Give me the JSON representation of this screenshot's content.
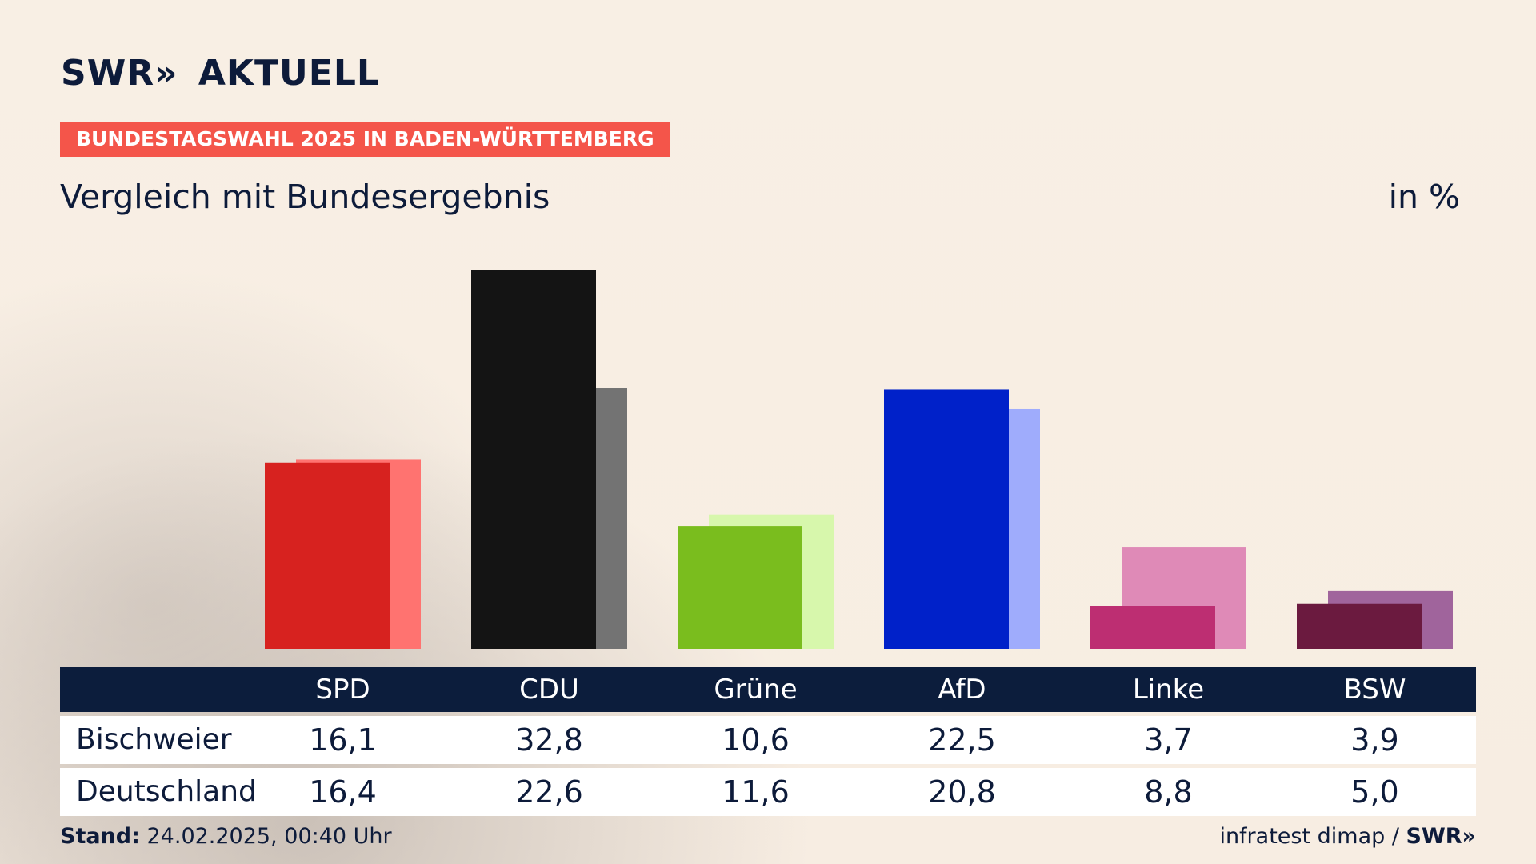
{
  "header": {
    "logo_text": "SWR",
    "logo_chevrons": "»",
    "logo_suffix": "AKTUELL",
    "kicker": "BUNDESTAGSWAHL 2025 IN BADEN-WÜRTTEMBERG",
    "subtitle": "Vergleich mit Bundesergebnis",
    "unit": "in %"
  },
  "table": {
    "rows": [
      {
        "label": "Bischweier"
      },
      {
        "label": "Deutschland"
      }
    ]
  },
  "footer": {
    "stand_label": "Stand:",
    "stand_value": " 24.02.2025, 00:40 Uhr",
    "source": "infratest dimap / ",
    "source_logo": "SWR»"
  },
  "chart_data": {
    "type": "bar",
    "categories": [
      "SPD",
      "CDU",
      "Grüne",
      "AfD",
      "Linke",
      "BSW"
    ],
    "series": [
      {
        "name": "Bischweier",
        "values": [
          16.1,
          32.8,
          10.6,
          22.5,
          3.7,
          3.9
        ]
      },
      {
        "name": "Deutschland",
        "values": [
          16.4,
          22.6,
          11.6,
          20.8,
          8.8,
          5.0
        ]
      }
    ],
    "value_labels": [
      [
        "16,1",
        "32,8",
        "10,6",
        "22,5",
        "3,7",
        "3,9"
      ],
      [
        "16,4",
        "22,6",
        "11,6",
        "20,8",
        "8,8",
        "5,0"
      ]
    ],
    "colors": {
      "primary": [
        "#d7221f",
        "#141414",
        "#7abd1e",
        "#0021c9",
        "#bd2e72",
        "#6b1a3f"
      ],
      "secondary": [
        "#ff7370",
        "#737373",
        "#d7f7ac",
        "#9facfc",
        "#df8ab7",
        "#a0649c"
      ]
    },
    "ylim": [
      0,
      33
    ],
    "grid": false,
    "legend": "table-below"
  }
}
